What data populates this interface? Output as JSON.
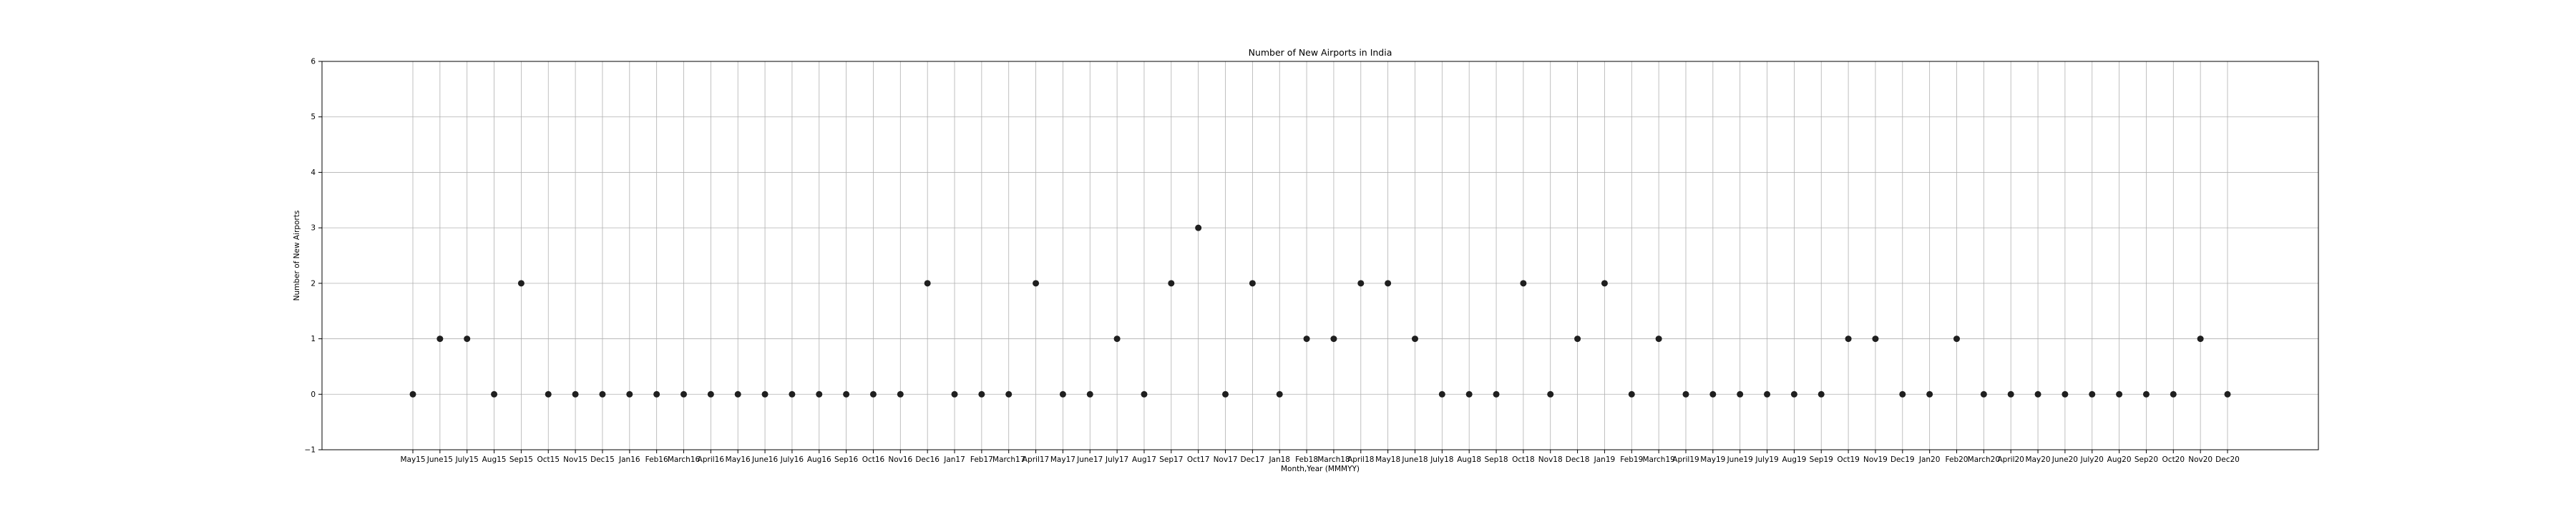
{
  "chart_data": {
    "type": "scatter",
    "title": "Number of New Airports in India",
    "xlabel": "Month,Year (MMMYY)",
    "ylabel": "Number of New Airports",
    "ylim": [
      -1,
      6
    ],
    "yticks": [
      "−1",
      "0",
      "1",
      "2",
      "3",
      "4",
      "5",
      "6"
    ],
    "grid": true,
    "categories": [
      "May15",
      "June15",
      "July15",
      "Aug15",
      "Sep15",
      "Oct15",
      "Nov15",
      "Dec15",
      "Jan16",
      "Feb16",
      "March16",
      "April16",
      "May16",
      "June16",
      "July16",
      "Aug16",
      "Sep16",
      "Oct16",
      "Nov16",
      "Dec16",
      "Jan17",
      "Feb17",
      "March17",
      "April17",
      "May17",
      "June17",
      "July17",
      "Aug17",
      "Sep17",
      "Oct17",
      "Nov17",
      "Dec17",
      "Jan18",
      "Feb18",
      "March18",
      "April18",
      "May18",
      "June18",
      "July18",
      "Aug18",
      "Sep18",
      "Oct18",
      "Nov18",
      "Dec18",
      "Jan19",
      "Feb19",
      "March19",
      "April19",
      "May19",
      "June19",
      "July19",
      "Aug19",
      "Sep19",
      "Oct19",
      "Nov19",
      "Dec19",
      "Jan20",
      "Feb20",
      "March20",
      "April20",
      "May20",
      "June20",
      "July20",
      "Aug20",
      "Sep20",
      "Oct20",
      "Nov20",
      "Dec20"
    ],
    "values": [
      0,
      1,
      1,
      0,
      2,
      0,
      0,
      0,
      0,
      0,
      0,
      0,
      0,
      0,
      0,
      0,
      0,
      0,
      0,
      2,
      0,
      0,
      0,
      2,
      0,
      0,
      1,
      0,
      2,
      3,
      0,
      2,
      0,
      1,
      1,
      2,
      2,
      1,
      0,
      0,
      0,
      2,
      0,
      1,
      2,
      0,
      1,
      0,
      0,
      0,
      0,
      0,
      0,
      1,
      1,
      0,
      0,
      1,
      0,
      0,
      0,
      0,
      0,
      0,
      0,
      0,
      1,
      0
    ]
  }
}
